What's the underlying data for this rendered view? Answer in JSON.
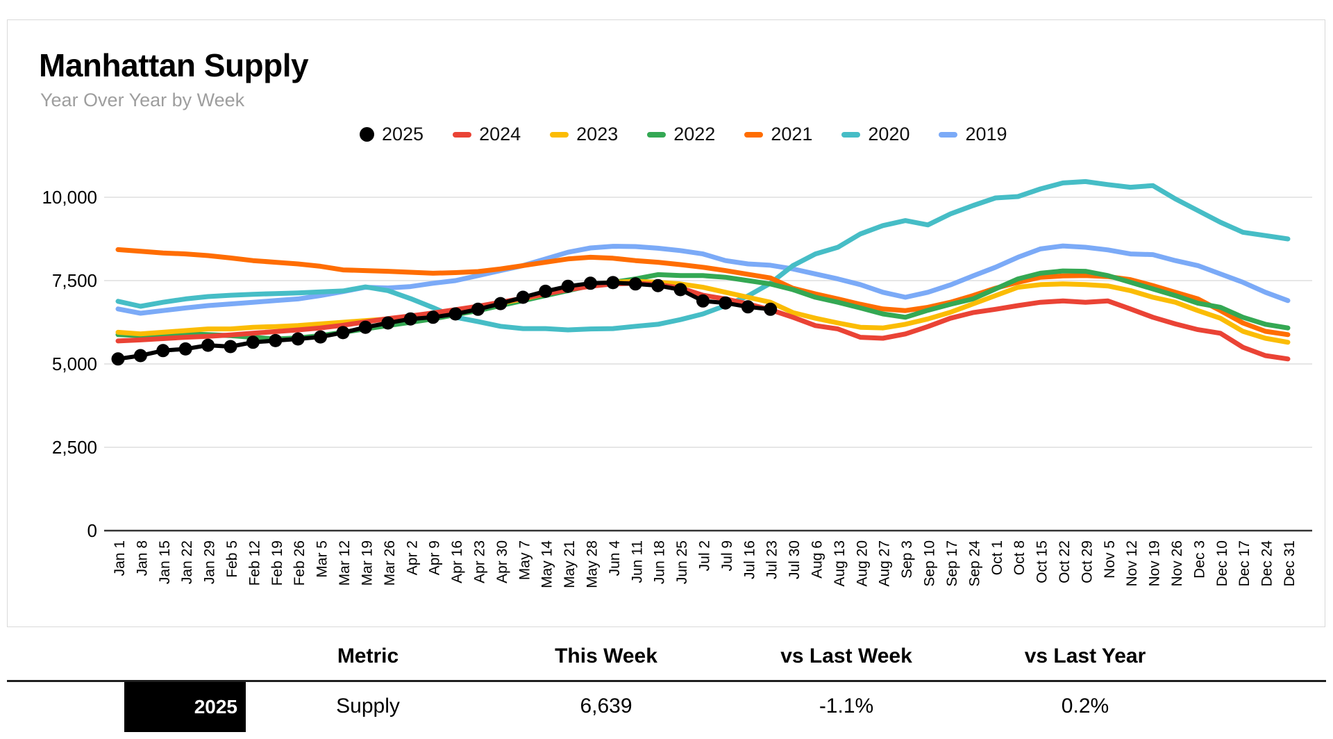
{
  "chart_data": {
    "type": "line",
    "title": "Manhattan Supply",
    "subtitle": "Year Over Year by Week",
    "legend_position": "top",
    "grid": true,
    "ylim": [
      0,
      11000
    ],
    "y_ticks": [
      0,
      2500,
      5000,
      7500,
      10000
    ],
    "y_tick_labels": [
      "0",
      "2,500",
      "5,000",
      "7,500",
      "10,000"
    ],
    "x_labels": [
      "Jan 1",
      "Jan 8",
      "Jan 15",
      "Jan 22",
      "Jan 29",
      "Feb 5",
      "Feb 12",
      "Feb 19",
      "Feb 26",
      "Mar 5",
      "Mar 12",
      "Mar 19",
      "Mar 26",
      "Apr 2",
      "Apr 9",
      "Apr 16",
      "Apr 23",
      "Apr 30",
      "May 7",
      "May 14",
      "May 21",
      "May 28",
      "Jun 4",
      "Jun 11",
      "Jun 18",
      "Jun 25",
      "Jul 2",
      "Jul 9",
      "Jul 16",
      "Jul 23",
      "Jul 30",
      "Aug 6",
      "Aug 13",
      "Aug 20",
      "Aug 27",
      "Sep 3",
      "Sep 10",
      "Sep 17",
      "Sep 24",
      "Oct 1",
      "Oct 8",
      "Oct 15",
      "Oct 22",
      "Oct 29",
      "Nov 5",
      "Nov 12",
      "Nov 19",
      "Nov 26",
      "Dec 3",
      "Dec 10",
      "Dec 17",
      "Dec 24",
      "Dec 31"
    ],
    "series": [
      {
        "name": "2025",
        "color": "#000000",
        "marker": "circle",
        "values": [
          5150,
          5250,
          5400,
          5450,
          5560,
          5520,
          5650,
          5700,
          5750,
          5810,
          5940,
          6100,
          6230,
          6350,
          6400,
          6500,
          6640,
          6810,
          7000,
          7180,
          7330,
          7420,
          7440,
          7400,
          7350,
          7230,
          6890,
          6830,
          6713,
          6639
        ]
      },
      {
        "name": "2024",
        "color": "#ea4335",
        "marker": "none",
        "values": [
          5690,
          5720,
          5760,
          5800,
          5830,
          5870,
          5920,
          5970,
          6020,
          6080,
          6160,
          6260,
          6360,
          6440,
          6530,
          6630,
          6730,
          6850,
          6970,
          7100,
          7230,
          7330,
          7400,
          7420,
          7380,
          7280,
          7060,
          6950,
          6800,
          6626,
          6400,
          6150,
          6050,
          5800,
          5770,
          5900,
          6120,
          6370,
          6540,
          6640,
          6750,
          6850,
          6890,
          6850,
          6890,
          6650,
          6400,
          6200,
          6030,
          5920,
          5500,
          5250,
          5150
        ]
      },
      {
        "name": "2023",
        "color": "#fbbc04",
        "marker": "none",
        "values": [
          5950,
          5900,
          5950,
          6000,
          6050,
          6050,
          6100,
          6120,
          6150,
          6200,
          6250,
          6300,
          6350,
          6420,
          6500,
          6600,
          6700,
          6820,
          6950,
          7100,
          7250,
          7380,
          7450,
          7480,
          7450,
          7400,
          7300,
          7150,
          7000,
          6850,
          6540,
          6370,
          6230,
          6100,
          6080,
          6190,
          6350,
          6550,
          6800,
          7050,
          7300,
          7380,
          7400,
          7380,
          7340,
          7200,
          7000,
          6850,
          6600,
          6370,
          5980,
          5770,
          5650
        ]
      },
      {
        "name": "2022",
        "color": "#34a853",
        "marker": "none",
        "values": [
          5880,
          5850,
          5870,
          5900,
          5880,
          5850,
          5800,
          5750,
          5780,
          5850,
          5950,
          6050,
          6150,
          6250,
          6350,
          6480,
          6600,
          6750,
          6900,
          7050,
          7200,
          7350,
          7450,
          7550,
          7680,
          7650,
          7650,
          7600,
          7500,
          7400,
          7230,
          7000,
          6850,
          6680,
          6500,
          6400,
          6610,
          6790,
          6950,
          7250,
          7550,
          7720,
          7790,
          7780,
          7650,
          7450,
          7250,
          7050,
          6820,
          6700,
          6400,
          6190,
          6080
        ]
      },
      {
        "name": "2021",
        "color": "#ff6d01",
        "marker": "none",
        "values": [
          8430,
          8380,
          8330,
          8300,
          8250,
          8180,
          8100,
          8050,
          8000,
          7930,
          7820,
          7800,
          7780,
          7750,
          7720,
          7740,
          7770,
          7850,
          7950,
          8050,
          8150,
          8200,
          8170,
          8100,
          8050,
          7980,
          7900,
          7800,
          7690,
          7580,
          7270,
          7100,
          6950,
          6790,
          6650,
          6600,
          6700,
          6850,
          7050,
          7270,
          7450,
          7600,
          7640,
          7650,
          7620,
          7530,
          7350,
          7150,
          6950,
          6600,
          6230,
          5980,
          5880
        ]
      },
      {
        "name": "2020",
        "color": "#46bdc6",
        "marker": "none",
        "values": [
          6880,
          6730,
          6850,
          6950,
          7020,
          7060,
          7090,
          7110,
          7130,
          7160,
          7190,
          7310,
          7200,
          6960,
          6690,
          6400,
          6270,
          6130,
          6060,
          6060,
          6020,
          6050,
          6060,
          6130,
          6190,
          6330,
          6500,
          6750,
          7040,
          7420,
          7950,
          8300,
          8500,
          8900,
          9150,
          9300,
          9170,
          9500,
          9750,
          9980,
          10020,
          10250,
          10430,
          10470,
          10380,
          10300,
          10350,
          9950,
          9600,
          9250,
          8950,
          8850,
          8750
        ]
      },
      {
        "name": "2019",
        "color": "#7baaf7",
        "marker": "none",
        "values": [
          6650,
          6520,
          6600,
          6680,
          6750,
          6800,
          6850,
          6900,
          6950,
          7050,
          7170,
          7300,
          7280,
          7320,
          7420,
          7500,
          7650,
          7800,
          7950,
          8150,
          8350,
          8480,
          8530,
          8520,
          8470,
          8400,
          8300,
          8100,
          8000,
          7960,
          7850,
          7700,
          7550,
          7380,
          7150,
          7000,
          7150,
          7370,
          7640,
          7900,
          8200,
          8450,
          8540,
          8500,
          8420,
          8300,
          8280,
          8100,
          7950,
          7700,
          7450,
          7150,
          6900
        ]
      }
    ]
  },
  "table": {
    "headers": [
      "Metric",
      "This Week",
      "vs Last Week",
      "vs Last Year"
    ],
    "row": {
      "year": "2025",
      "metric": "Supply",
      "this_week": "6,639",
      "vs_last_week": "-1.1%",
      "vs_last_year": "0.2%"
    }
  }
}
